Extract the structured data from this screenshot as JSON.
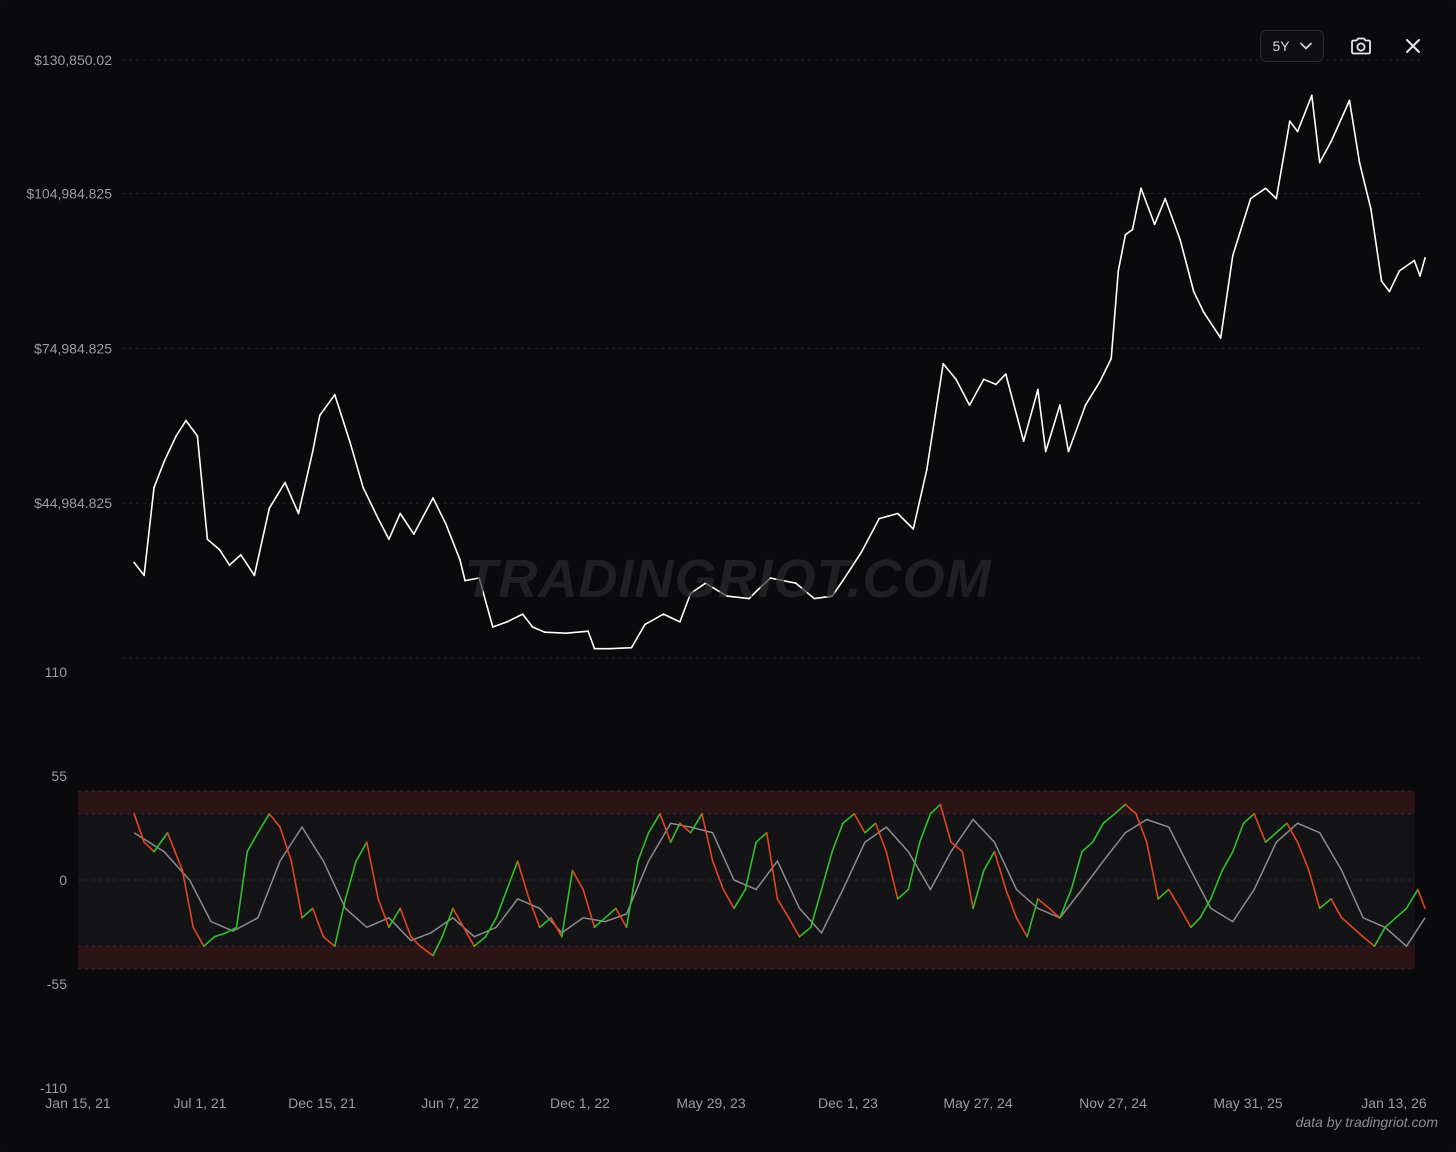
{
  "controls": {
    "range_label": "5Y",
    "chevron_icon": "chevron-down-icon",
    "camera_icon": "camera-icon",
    "close_icon": "close-icon"
  },
  "watermark": "TRADINGRIOT.COM",
  "credit": "data by tradingriot.com",
  "chart_data": [
    {
      "type": "line",
      "panel": "price",
      "y_tick_labels": [
        "$130,850.02",
        "$104,984.825",
        "$74,984.825",
        "$44,984.825"
      ],
      "y_ticks": [
        130850.02,
        104984.825,
        74984.825,
        44984.825
      ],
      "ylim": [
        15000,
        130850.02
      ],
      "grid": true,
      "series": [
        {
          "color": "#ffffff",
          "x": [
            "2021-02-01",
            "2021-02-15",
            "2021-03-01",
            "2021-03-15",
            "2021-04-01",
            "2021-04-15",
            "2021-05-01",
            "2021-05-15",
            "2021-06-01",
            "2021-06-15",
            "2021-07-01",
            "2021-07-20",
            "2021-08-10",
            "2021-09-01",
            "2021-09-20",
            "2021-10-10",
            "2021-10-20",
            "2021-11-10",
            "2021-12-01",
            "2021-12-20",
            "2022-01-10",
            "2022-01-25",
            "2022-02-10",
            "2022-03-01",
            "2022-03-28",
            "2022-04-15",
            "2022-05-05",
            "2022-05-12",
            "2022-06-01",
            "2022-06-20",
            "2022-07-10",
            "2022-08-01",
            "2022-08-15",
            "2022-09-01",
            "2022-10-01",
            "2022-11-01",
            "2022-11-10",
            "2022-12-01",
            "2023-01-01",
            "2023-01-20",
            "2023-02-15",
            "2023-03-10",
            "2023-03-25",
            "2023-04-15",
            "2023-05-15",
            "2023-06-15",
            "2023-07-15",
            "2023-08-20",
            "2023-09-15",
            "2023-10-10",
            "2023-10-25",
            "2023-11-20",
            "2023-12-15",
            "2024-01-10",
            "2024-02-01",
            "2024-02-20",
            "2024-03-14",
            "2024-04-01",
            "2024-04-20",
            "2024-05-10",
            "2024-05-27",
            "2024-06-10",
            "2024-07-05",
            "2024-07-25",
            "2024-08-05",
            "2024-08-25",
            "2024-09-06",
            "2024-09-30",
            "2024-10-20",
            "2024-11-05",
            "2024-11-15",
            "2024-11-25",
            "2024-12-05",
            "2024-12-17",
            "2025-01-05",
            "2025-01-20",
            "2025-02-10",
            "2025-03-01",
            "2025-03-15",
            "2025-04-08",
            "2025-04-25",
            "2025-05-20",
            "2025-06-10",
            "2025-06-25",
            "2025-07-14",
            "2025-07-25",
            "2025-08-14",
            "2025-08-25",
            "2025-09-10",
            "2025-10-06",
            "2025-10-20",
            "2025-11-05",
            "2025-11-20",
            "2025-12-01",
            "2025-12-15",
            "2026-01-05",
            "2026-01-13",
            "2026-01-20"
          ],
          "y": [
            33500,
            31000,
            48000,
            53000,
            58000,
            61000,
            58000,
            38000,
            36000,
            33000,
            35000,
            31000,
            44000,
            49000,
            43000,
            55000,
            62000,
            66000,
            57000,
            48000,
            42000,
            38000,
            43000,
            39000,
            46000,
            41000,
            34000,
            30000,
            30500,
            21000,
            22000,
            23500,
            21000,
            20000,
            19800,
            20200,
            16800,
            16800,
            17000,
            21500,
            23500,
            22000,
            27500,
            29500,
            27000,
            26500,
            30500,
            29500,
            26500,
            27000,
            30000,
            35500,
            42000,
            43000,
            40000,
            51500,
            72000,
            69000,
            64000,
            69000,
            68000,
            70000,
            57000,
            67000,
            55000,
            64000,
            55000,
            64000,
            68500,
            73000,
            90000,
            97000,
            98000,
            106000,
            99000,
            104000,
            96000,
            86000,
            82000,
            77000,
            93000,
            104000,
            106000,
            104000,
            119000,
            117000,
            124000,
            111000,
            115000,
            123000,
            111000,
            102000,
            88000,
            86000,
            90000,
            92000,
            89000,
            92500
          ]
        }
      ]
    },
    {
      "type": "line",
      "panel": "oscillator",
      "y_tick_labels": [
        "110",
        "55",
        "0",
        "-55",
        "-110"
      ],
      "y_ticks": [
        110,
        55,
        0,
        -55,
        -110
      ],
      "ylim": [
        -110,
        110
      ],
      "bands": [
        {
          "from": 35,
          "to": 47
        },
        {
          "from": -47,
          "to": -35
        }
      ],
      "reference_lines": [
        47,
        35,
        -35,
        -47
      ],
      "x_tick_labels": [
        "Jan 15, 21",
        "Jul 1, 21",
        "Dec 15, 21",
        "Jun 7, 22",
        "Dec 1, 22",
        "May 29, 23",
        "Dec 1, 23",
        "May 27, 24",
        "Nov 27, 24",
        "May 31, 25",
        "Jan 13, 26"
      ],
      "x_ticks": [
        "2021-01-15",
        "2021-07-01",
        "2021-12-15",
        "2022-06-07",
        "2022-12-01",
        "2023-05-29",
        "2023-12-01",
        "2024-05-27",
        "2024-11-27",
        "2025-05-31",
        "2026-01-13"
      ],
      "x_range": [
        "2021-01-15",
        "2026-01-13"
      ],
      "grid": true,
      "series": [
        {
          "color": "#2fc12a",
          "down_color": "#e2461f",
          "x": [
            "2021-02-01",
            "2021-02-15",
            "2021-03-01",
            "2021-03-20",
            "2021-04-10",
            "2021-04-25",
            "2021-05-10",
            "2021-05-25",
            "2021-06-10",
            "2021-06-25",
            "2021-07-10",
            "2021-07-25",
            "2021-08-10",
            "2021-08-25",
            "2021-09-10",
            "2021-09-25",
            "2021-10-10",
            "2021-10-25",
            "2021-11-10",
            "2021-11-25",
            "2021-12-10",
            "2021-12-25",
            "2022-01-10",
            "2022-01-25",
            "2022-02-10",
            "2022-02-25",
            "2022-03-10",
            "2022-03-28",
            "2022-04-10",
            "2022-04-25",
            "2022-05-10",
            "2022-05-25",
            "2022-06-10",
            "2022-06-25",
            "2022-07-10",
            "2022-07-25",
            "2022-08-10",
            "2022-08-25",
            "2022-09-10",
            "2022-09-25",
            "2022-10-10",
            "2022-10-25",
            "2022-11-10",
            "2022-11-25",
            "2022-12-10",
            "2022-12-25",
            "2023-01-10",
            "2023-01-25",
            "2023-02-10",
            "2023-02-25",
            "2023-03-10",
            "2023-03-25",
            "2023-04-10",
            "2023-04-25",
            "2023-05-10",
            "2023-05-25",
            "2023-06-10",
            "2023-06-25",
            "2023-07-10",
            "2023-07-25",
            "2023-08-10",
            "2023-08-25",
            "2023-09-10",
            "2023-09-25",
            "2023-10-10",
            "2023-10-25",
            "2023-11-10",
            "2023-11-25",
            "2023-12-10",
            "2023-12-25",
            "2024-01-10",
            "2024-01-25",
            "2024-02-10",
            "2024-02-25",
            "2024-03-10",
            "2024-03-25",
            "2024-04-10",
            "2024-04-25",
            "2024-05-10",
            "2024-05-25",
            "2024-06-10",
            "2024-06-25",
            "2024-07-10",
            "2024-07-25",
            "2024-08-10",
            "2024-08-25",
            "2024-09-10",
            "2024-09-25",
            "2024-10-10",
            "2024-10-25",
            "2024-11-10",
            "2024-11-25",
            "2024-12-10",
            "2024-12-25",
            "2025-01-10",
            "2025-01-25",
            "2025-02-10",
            "2025-02-25",
            "2025-03-10",
            "2025-03-25",
            "2025-04-10",
            "2025-04-25",
            "2025-05-10",
            "2025-05-25",
            "2025-06-10",
            "2025-06-25",
            "2025-07-10",
            "2025-07-25",
            "2025-08-10",
            "2025-08-25",
            "2025-09-10",
            "2025-09-25",
            "2025-10-10",
            "2025-10-25",
            "2025-11-10",
            "2025-11-25",
            "2025-12-10",
            "2025-12-25",
            "2026-01-10",
            "2026-01-20"
          ],
          "y": [
            35,
            20,
            15,
            25,
            5,
            -25,
            -35,
            -30,
            -28,
            -25,
            15,
            25,
            35,
            28,
            10,
            -20,
            -15,
            -30,
            -35,
            -10,
            10,
            20,
            -10,
            -25,
            -15,
            -30,
            -35,
            -40,
            -30,
            -15,
            -25,
            -35,
            -30,
            -20,
            -5,
            10,
            -10,
            -25,
            -20,
            -30,
            5,
            -5,
            -25,
            -20,
            -15,
            -25,
            10,
            25,
            35,
            20,
            30,
            25,
            35,
            10,
            -5,
            -15,
            -5,
            20,
            25,
            -10,
            -20,
            -30,
            -25,
            -5,
            15,
            30,
            35,
            25,
            30,
            15,
            -10,
            -5,
            20,
            35,
            40,
            20,
            15,
            -15,
            5,
            15,
            -5,
            -20,
            -30,
            -10,
            -15,
            -20,
            -5,
            15,
            20,
            30,
            35,
            40,
            35,
            20,
            -10,
            -5,
            -15,
            -25,
            -20,
            -10,
            5,
            15,
            30,
            35,
            20,
            25,
            30,
            20,
            5,
            -15,
            -10,
            -20,
            -25,
            -30,
            -35,
            -25,
            -20,
            -15,
            -5,
            -15
          ]
        },
        {
          "color": "#8c8c90",
          "x": [
            "2021-02-01",
            "2021-03-15",
            "2021-04-20",
            "2021-05-20",
            "2021-06-20",
            "2021-07-25",
            "2021-08-25",
            "2021-09-25",
            "2021-10-25",
            "2021-11-25",
            "2021-12-25",
            "2022-01-25",
            "2022-02-25",
            "2022-03-25",
            "2022-04-25",
            "2022-05-25",
            "2022-06-25",
            "2022-07-25",
            "2022-08-25",
            "2022-09-25",
            "2022-10-25",
            "2022-11-25",
            "2022-12-25",
            "2023-01-25",
            "2023-02-25",
            "2023-03-25",
            "2023-04-25",
            "2023-05-25",
            "2023-06-25",
            "2023-07-25",
            "2023-08-25",
            "2023-09-25",
            "2023-10-25",
            "2023-11-25",
            "2023-12-25",
            "2024-01-25",
            "2024-02-25",
            "2024-03-25",
            "2024-04-25",
            "2024-05-25",
            "2024-06-25",
            "2024-07-25",
            "2024-08-25",
            "2024-09-25",
            "2024-10-25",
            "2024-11-25",
            "2024-12-25",
            "2025-01-25",
            "2025-02-25",
            "2025-03-25",
            "2025-04-25",
            "2025-05-25",
            "2025-06-25",
            "2025-07-25",
            "2025-08-25",
            "2025-09-25",
            "2025-10-25",
            "2025-11-25",
            "2025-12-25",
            "2026-01-20"
          ],
          "y": [
            25,
            15,
            0,
            -22,
            -27,
            -20,
            10,
            28,
            10,
            -15,
            -25,
            -20,
            -32,
            -28,
            -20,
            -30,
            -25,
            -10,
            -15,
            -28,
            -20,
            -22,
            -18,
            10,
            30,
            28,
            25,
            0,
            -5,
            10,
            -15,
            -28,
            -5,
            20,
            28,
            15,
            -5,
            15,
            32,
            20,
            -5,
            -15,
            -20,
            -5,
            10,
            25,
            32,
            28,
            5,
            -15,
            -22,
            -5,
            20,
            30,
            25,
            5,
            -20,
            -25,
            -35,
            -20
          ]
        }
      ]
    }
  ]
}
